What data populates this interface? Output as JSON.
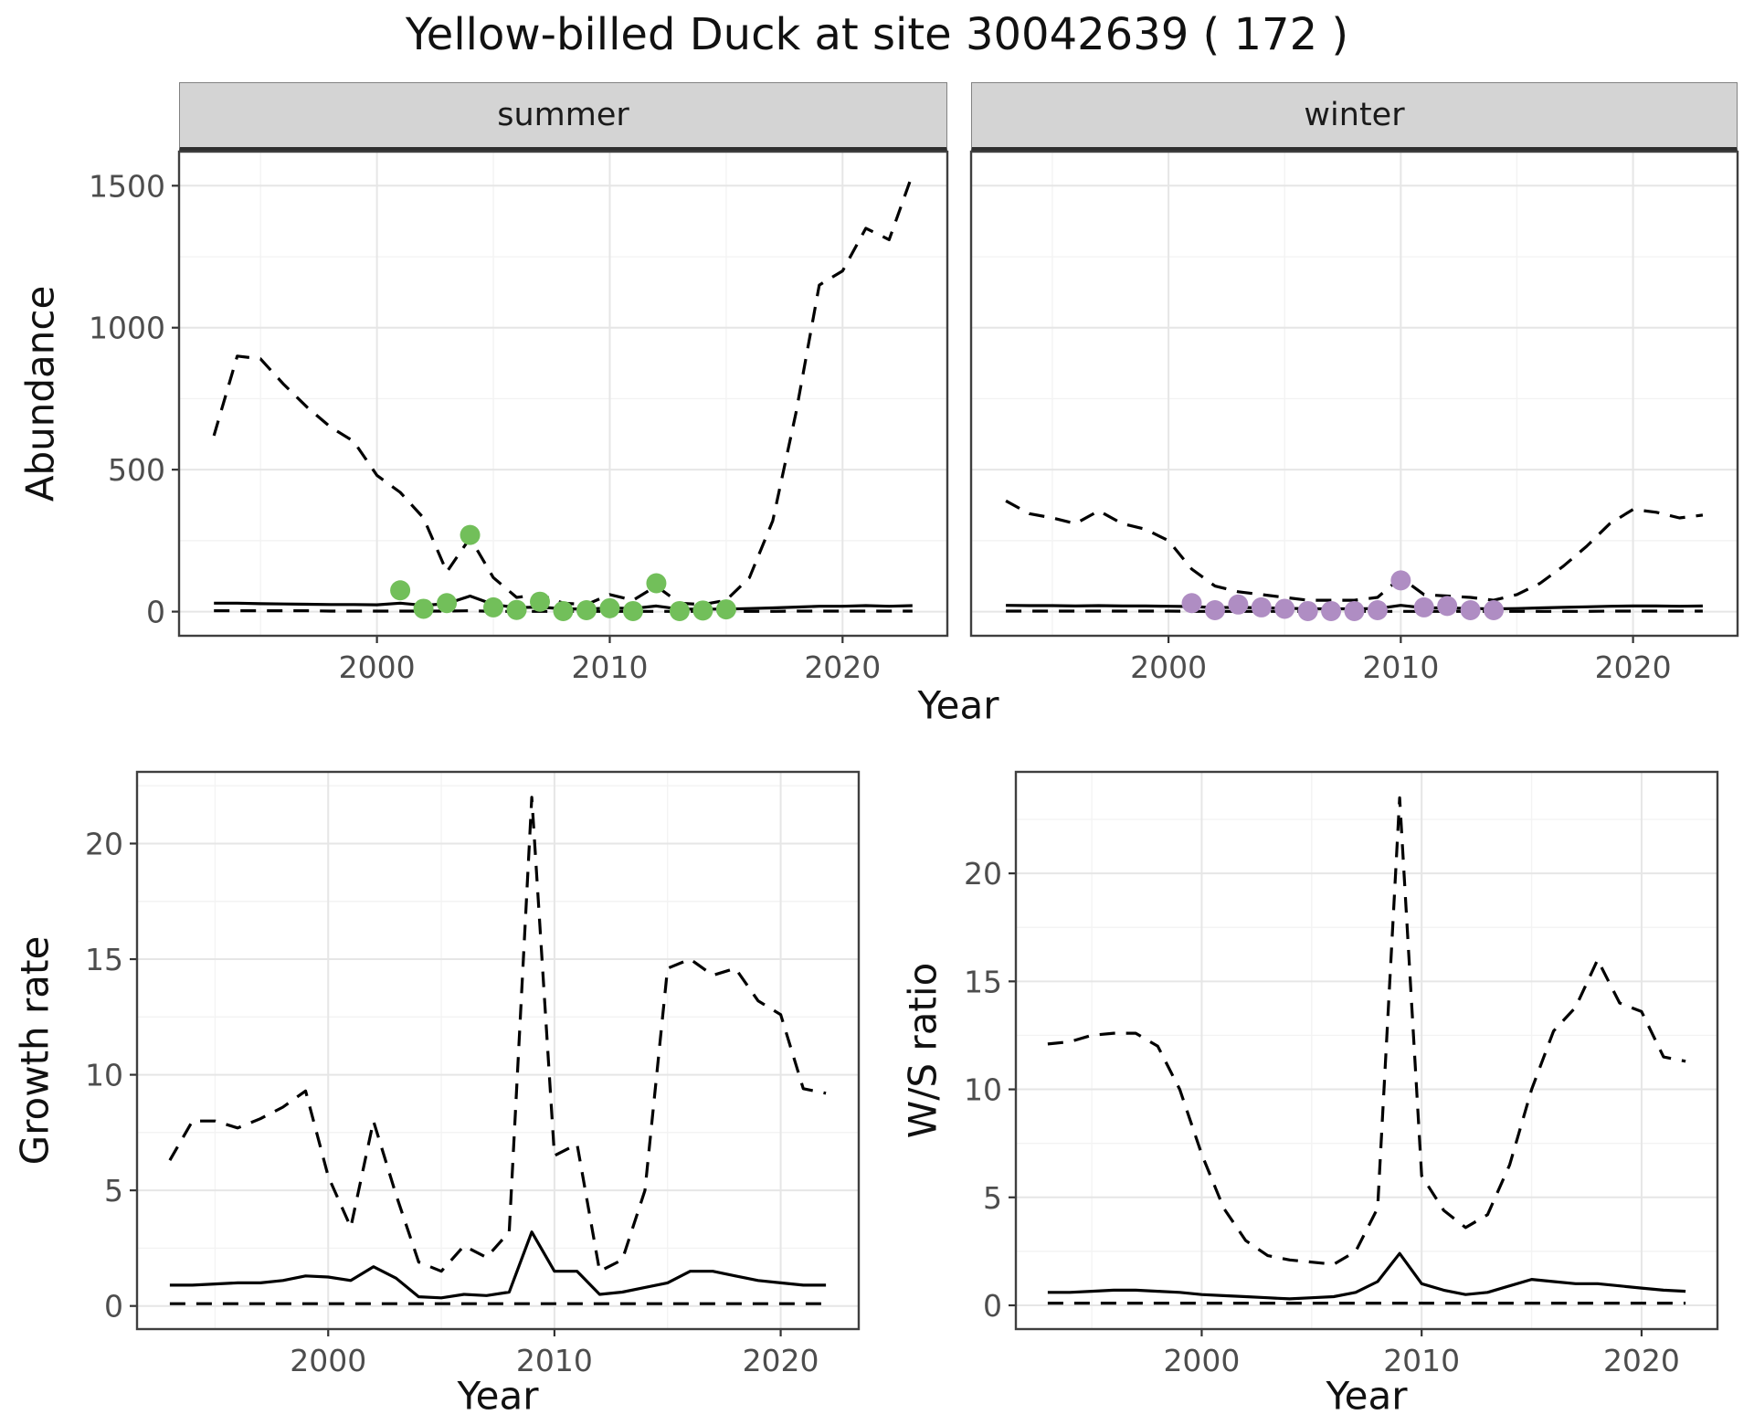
{
  "title": "Yellow-billed Duck at site 30042639 ( 172 )",
  "facets": {
    "summer": "summer",
    "winter": "winter"
  },
  "axis_labels": {
    "abundance": "Abundance",
    "year": "Year",
    "growth_rate": "Growth rate",
    "ws_ratio": "W/S ratio"
  },
  "colors": {
    "line": "#000000",
    "summer_points": "#72bf5a",
    "winter_points": "#af8dc3",
    "grid_major": "#e6e6e6",
    "grid_minor": "#f3f3f3",
    "panel_border": "#3f3f3f",
    "tick_text": "#4d4d4d",
    "strip_bg": "#d4d4d4"
  },
  "chart_data": [
    {
      "id": "abundance_summer",
      "type": "line",
      "facet_label": "summer",
      "title": "Yellow-billed Duck at site 30042639 ( 172 )",
      "xlabel": "Year",
      "ylabel": "Abundance",
      "xlim": [
        1991.5,
        2024.5
      ],
      "ylim": [
        -85,
        1620
      ],
      "xticks": [
        2000,
        2010,
        2020
      ],
      "yticks": [
        0,
        500,
        1000,
        1500
      ],
      "grid": true,
      "legend": "none",
      "series": [
        {
          "name": "upper-credible-dashed",
          "style": "dashed",
          "x": [
            1993,
            1994,
            1995,
            1996,
            1997,
            1998,
            1999,
            2000,
            2001,
            2002,
            2003,
            2004,
            2005,
            2006,
            2007,
            2008,
            2009,
            2010,
            2011,
            2012,
            2013,
            2014,
            2015,
            2016,
            2017,
            2018,
            2019,
            2020,
            2021,
            2022,
            2023
          ],
          "y": [
            620,
            900,
            890,
            800,
            720,
            650,
            600,
            480,
            420,
            330,
            140,
            260,
            120,
            50,
            60,
            30,
            25,
            60,
            40,
            90,
            30,
            25,
            40,
            120,
            320,
            700,
            1150,
            1200,
            1350,
            1310,
            1540
          ]
        },
        {
          "name": "median-solid",
          "style": "solid",
          "x": [
            1993,
            1994,
            1995,
            1996,
            1997,
            1998,
            1999,
            2000,
            2001,
            2002,
            2003,
            2004,
            2005,
            2006,
            2007,
            2008,
            2009,
            2010,
            2011,
            2012,
            2013,
            2014,
            2015,
            2016,
            2017,
            2018,
            2019,
            2020,
            2021,
            2022,
            2023
          ],
          "y": [
            30,
            30,
            28,
            27,
            26,
            25,
            25,
            24,
            30,
            22,
            28,
            55,
            25,
            14,
            16,
            10,
            9,
            13,
            11,
            20,
            9,
            9,
            9,
            11,
            13,
            16,
            19,
            19,
            21,
            19,
            21
          ]
        },
        {
          "name": "lower-credible-dashed",
          "style": "dashed",
          "x": [
            1993,
            1994,
            1995,
            1996,
            1997,
            1998,
            1999,
            2000,
            2001,
            2002,
            2003,
            2004,
            2005,
            2006,
            2007,
            2008,
            2009,
            2010,
            2011,
            2012,
            2013,
            2014,
            2015,
            2016,
            2017,
            2018,
            2019,
            2020,
            2021,
            2022,
            2023
          ],
          "y": [
            3,
            3,
            3,
            3,
            3,
            2,
            2,
            2,
            2,
            2,
            2,
            3,
            1,
            1,
            1,
            1,
            1,
            1,
            1,
            1,
            1,
            1,
            1,
            1,
            1,
            2,
            2,
            2,
            2,
            2,
            2
          ]
        }
      ],
      "points": {
        "name": "observed-summer-counts",
        "color": "#72bf5a",
        "x": [
          2001,
          2002,
          2003,
          2004,
          2005,
          2006,
          2007,
          2008,
          2009,
          2010,
          2011,
          2012,
          2013,
          2014,
          2015
        ],
        "y": [
          75,
          10,
          30,
          270,
          15,
          6,
          35,
          2,
          5,
          12,
          2,
          100,
          2,
          4,
          8
        ]
      }
    },
    {
      "id": "abundance_winter",
      "type": "line",
      "facet_label": "winter",
      "xlabel": "Year",
      "ylabel": "Abundance",
      "xlim": [
        1991.5,
        2024.5
      ],
      "ylim": [
        -85,
        1620
      ],
      "xticks": [
        2000,
        2010,
        2020
      ],
      "yticks": [
        0,
        500,
        1000,
        1500
      ],
      "grid": true,
      "legend": "none",
      "series": [
        {
          "name": "upper-credible-dashed",
          "style": "dashed",
          "x": [
            1993,
            1994,
            1995,
            1996,
            1997,
            1998,
            1999,
            2000,
            2001,
            2002,
            2003,
            2004,
            2005,
            2006,
            2007,
            2008,
            2009,
            2010,
            2011,
            2012,
            2013,
            2014,
            2015,
            2016,
            2017,
            2018,
            2019,
            2020,
            2021,
            2022,
            2023
          ],
          "y": [
            390,
            345,
            330,
            310,
            355,
            310,
            290,
            250,
            150,
            90,
            70,
            60,
            50,
            40,
            40,
            40,
            50,
            120,
            60,
            55,
            50,
            40,
            60,
            100,
            160,
            230,
            310,
            360,
            350,
            330,
            340
          ]
        },
        {
          "name": "median-solid",
          "style": "solid",
          "x": [
            1993,
            1994,
            1995,
            1996,
            1997,
            1998,
            1999,
            2000,
            2001,
            2002,
            2003,
            2004,
            2005,
            2006,
            2007,
            2008,
            2009,
            2010,
            2011,
            2012,
            2013,
            2014,
            2015,
            2016,
            2017,
            2018,
            2019,
            2020,
            2021,
            2022,
            2023
          ],
          "y": [
            22,
            21,
            21,
            20,
            21,
            20,
            20,
            19,
            18,
            14,
            15,
            13,
            12,
            10,
            10,
            10,
            11,
            22,
            13,
            13,
            11,
            10,
            11,
            13,
            15,
            17,
            19,
            20,
            20,
            19,
            20
          ]
        },
        {
          "name": "lower-credible-dashed",
          "style": "dashed",
          "x": [
            1993,
            1994,
            1995,
            1996,
            1997,
            1998,
            1999,
            2000,
            2001,
            2002,
            2003,
            2004,
            2005,
            2006,
            2007,
            2008,
            2009,
            2010,
            2011,
            2012,
            2013,
            2014,
            2015,
            2016,
            2017,
            2018,
            2019,
            2020,
            2021,
            2022,
            2023
          ],
          "y": [
            2,
            2,
            2,
            2,
            2,
            2,
            2,
            2,
            1,
            1,
            1,
            1,
            1,
            1,
            1,
            1,
            1,
            1,
            1,
            1,
            1,
            1,
            1,
            1,
            1,
            1,
            2,
            2,
            2,
            2,
            2
          ]
        }
      ],
      "points": {
        "name": "observed-winter-counts",
        "color": "#af8dc3",
        "x": [
          2001,
          2002,
          2003,
          2004,
          2005,
          2006,
          2007,
          2008,
          2009,
          2010,
          2011,
          2012,
          2013,
          2014
        ],
        "y": [
          30,
          5,
          25,
          15,
          10,
          2,
          2,
          2,
          5,
          110,
          15,
          20,
          5,
          5
        ]
      }
    },
    {
      "id": "growth_rate",
      "type": "line",
      "xlabel": "Year",
      "ylabel": "Growth rate",
      "xlim": [
        1991.55,
        2023.45
      ],
      "ylim": [
        -1.0,
        23.1
      ],
      "xticks": [
        2000,
        2010,
        2020
      ],
      "yticks": [
        0,
        5,
        10,
        15,
        20
      ],
      "grid": true,
      "legend": "none",
      "series": [
        {
          "name": "upper-credible-dashed",
          "style": "dashed",
          "x": [
            1993,
            1994,
            1995,
            1996,
            1997,
            1998,
            1999,
            2000,
            2001,
            2002,
            2003,
            2004,
            2005,
            2006,
            2007,
            2008,
            2009,
            2010,
            2011,
            2012,
            2013,
            2014,
            2015,
            2016,
            2017,
            2018,
            2019,
            2020,
            2021,
            2022
          ],
          "y": [
            6.3,
            8.0,
            8.0,
            7.7,
            8.1,
            8.6,
            9.3,
            5.6,
            3.4,
            8.0,
            4.8,
            1.9,
            1.5,
            2.6,
            2.1,
            3.2,
            22.0,
            6.5,
            7.0,
            1.5,
            2.0,
            5.0,
            14.6,
            15.0,
            14.3,
            14.6,
            13.2,
            12.6,
            9.4,
            9.2
          ]
        },
        {
          "name": "median-solid",
          "style": "solid",
          "x": [
            1993,
            1994,
            1995,
            1996,
            1997,
            1998,
            1999,
            2000,
            2001,
            2002,
            2003,
            2004,
            2005,
            2006,
            2007,
            2008,
            2009,
            2010,
            2011,
            2012,
            2013,
            2014,
            2015,
            2016,
            2017,
            2018,
            2019,
            2020,
            2021,
            2022
          ],
          "y": [
            0.9,
            0.9,
            0.95,
            1.0,
            1.0,
            1.1,
            1.3,
            1.25,
            1.1,
            1.7,
            1.2,
            0.4,
            0.35,
            0.5,
            0.45,
            0.6,
            3.2,
            1.5,
            1.5,
            0.5,
            0.6,
            0.8,
            1.0,
            1.5,
            1.5,
            1.3,
            1.1,
            1.0,
            0.9,
            0.9
          ]
        },
        {
          "name": "lower-credible-dashed",
          "style": "dashed",
          "x": [
            1993,
            1994,
            1995,
            1996,
            1997,
            1998,
            1999,
            2000,
            2001,
            2002,
            2003,
            2004,
            2005,
            2006,
            2007,
            2008,
            2009,
            2010,
            2011,
            2012,
            2013,
            2014,
            2015,
            2016,
            2017,
            2018,
            2019,
            2020,
            2021,
            2022
          ],
          "y": [
            0.1,
            0.1,
            0.1,
            0.1,
            0.1,
            0.1,
            0.1,
            0.1,
            0.1,
            0.1,
            0.1,
            0.1,
            0.1,
            0.1,
            0.1,
            0.1,
            0.1,
            0.1,
            0.1,
            0.1,
            0.1,
            0.1,
            0.1,
            0.1,
            0.1,
            0.1,
            0.1,
            0.1,
            0.1,
            0.1
          ]
        }
      ]
    },
    {
      "id": "ws_ratio",
      "type": "line",
      "xlabel": "Year",
      "ylabel": "W/S ratio",
      "xlim": [
        1991.55,
        2023.45
      ],
      "ylim": [
        -1.1,
        24.7
      ],
      "xticks": [
        2000,
        2010,
        2020
      ],
      "yticks": [
        0,
        5,
        10,
        15,
        20
      ],
      "grid": true,
      "legend": "none",
      "series": [
        {
          "name": "upper-credible-dashed",
          "style": "dashed",
          "x": [
            1993,
            1994,
            1995,
            1996,
            1997,
            1998,
            1999,
            2000,
            2001,
            2002,
            2003,
            2004,
            2005,
            2006,
            2007,
            2008,
            2009,
            2010,
            2011,
            2012,
            2013,
            2014,
            2015,
            2016,
            2017,
            2018,
            2019,
            2020,
            2021,
            2022
          ],
          "y": [
            12.1,
            12.2,
            12.5,
            12.6,
            12.6,
            12.0,
            10.0,
            7.0,
            4.5,
            3.0,
            2.3,
            2.1,
            2.0,
            1.9,
            2.5,
            4.5,
            23.5,
            6.0,
            4.4,
            3.6,
            4.2,
            6.5,
            10.0,
            12.7,
            13.8,
            16.0,
            14.0,
            13.6,
            11.5,
            11.3
          ]
        },
        {
          "name": "median-solid",
          "style": "solid",
          "x": [
            1993,
            1994,
            1995,
            1996,
            1997,
            1998,
            1999,
            2000,
            2001,
            2002,
            2003,
            2004,
            2005,
            2006,
            2007,
            2008,
            2009,
            2010,
            2011,
            2012,
            2013,
            2014,
            2015,
            2016,
            2017,
            2018,
            2019,
            2020,
            2021,
            2022
          ],
          "y": [
            0.6,
            0.6,
            0.65,
            0.7,
            0.7,
            0.65,
            0.6,
            0.5,
            0.45,
            0.4,
            0.35,
            0.3,
            0.35,
            0.4,
            0.6,
            1.1,
            2.4,
            1.0,
            0.7,
            0.5,
            0.6,
            0.9,
            1.2,
            1.1,
            1.0,
            1.0,
            0.9,
            0.8,
            0.7,
            0.65
          ]
        },
        {
          "name": "lower-credible-dashed",
          "style": "dashed",
          "x": [
            1993,
            1994,
            1995,
            1996,
            1997,
            1998,
            1999,
            2000,
            2001,
            2002,
            2003,
            2004,
            2005,
            2006,
            2007,
            2008,
            2009,
            2010,
            2011,
            2012,
            2013,
            2014,
            2015,
            2016,
            2017,
            2018,
            2019,
            2020,
            2021,
            2022
          ],
          "y": [
            0.1,
            0.1,
            0.1,
            0.1,
            0.1,
            0.1,
            0.1,
            0.1,
            0.1,
            0.1,
            0.1,
            0.1,
            0.1,
            0.1,
            0.1,
            0.1,
            0.1,
            0.1,
            0.1,
            0.1,
            0.1,
            0.1,
            0.1,
            0.1,
            0.1,
            0.1,
            0.1,
            0.1,
            0.1,
            0.1
          ]
        }
      ]
    }
  ]
}
